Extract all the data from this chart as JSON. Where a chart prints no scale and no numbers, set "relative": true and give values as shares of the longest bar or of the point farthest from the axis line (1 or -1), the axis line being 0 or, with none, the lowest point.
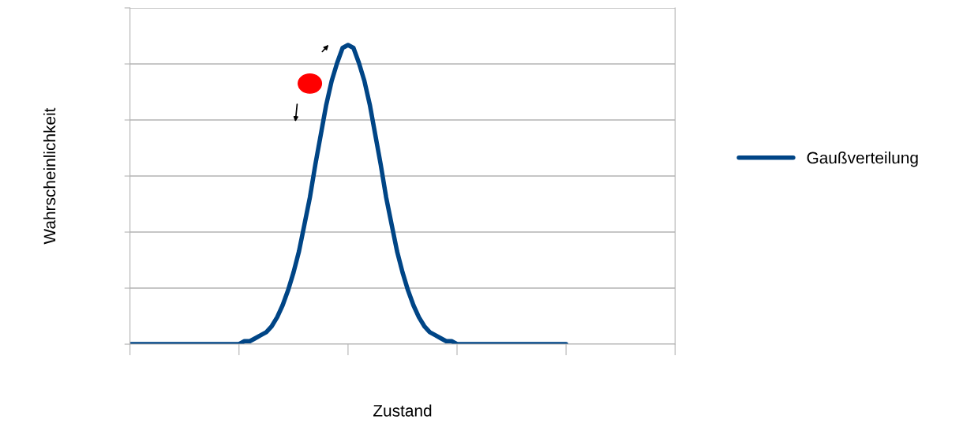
{
  "chart_data": {
    "type": "line",
    "relative": true,
    "xlabel": "Zustand",
    "ylabel": "Wahrscheinlichkeit",
    "grid": "y",
    "legend": "right",
    "marker": "none",
    "line_style": "solid",
    "categories": [
      null,
      null,
      null,
      null,
      null,
      null,
      null,
      null,
      null,
      null,
      null,
      null,
      null,
      null,
      null,
      null,
      null,
      null,
      null,
      null,
      null,
      null,
      null,
      null,
      null,
      null,
      null,
      null,
      null,
      null,
      null,
      null,
      null,
      null,
      null,
      null,
      null,
      null,
      null,
      null,
      null,
      null,
      null,
      null,
      null,
      null,
      null,
      null,
      null,
      null,
      null,
      null,
      null,
      null,
      null,
      null,
      null,
      null,
      null,
      null,
      null,
      null,
      null,
      null,
      null,
      null,
      null,
      null,
      null,
      null,
      null,
      null,
      null,
      null,
      null,
      null,
      null,
      null,
      null,
      null,
      null,
      null,
      null,
      null,
      null,
      null,
      null,
      null,
      null,
      null,
      null,
      null,
      null,
      null,
      null,
      null,
      null,
      null,
      null,
      null,
      null
    ],
    "series": [
      {
        "name": "Gaußverteilung",
        "color": "#004586",
        "values": [
          0,
          0,
          0,
          0,
          0,
          0,
          0,
          0,
          0,
          0,
          0,
          0,
          0,
          0,
          0,
          0,
          0,
          0,
          0,
          0,
          0,
          0.01,
          0.01,
          0.02,
          0.03,
          0.04,
          0.06,
          0.09,
          0.13,
          0.18,
          0.24,
          0.31,
          0.4,
          0.49,
          0.6,
          0.7,
          0.8,
          0.88,
          0.94,
          0.99,
          1,
          0.99,
          0.94,
          0.88,
          0.8,
          0.7,
          0.6,
          0.49,
          0.4,
          0.31,
          0.24,
          0.18,
          0.13,
          0.09,
          0.06,
          0.04,
          0.03,
          0.02,
          0.01,
          0.01,
          0,
          0,
          0,
          0,
          0,
          0,
          0,
          0,
          0,
          0,
          0,
          0,
          0,
          0,
          0,
          0,
          0,
          0,
          0,
          0,
          0,
          null,
          null,
          null,
          null,
          null,
          null,
          null,
          null,
          null,
          null,
          null,
          null,
          null,
          null,
          null,
          null,
          null,
          null,
          null,
          null
        ]
      }
    ]
  }
}
